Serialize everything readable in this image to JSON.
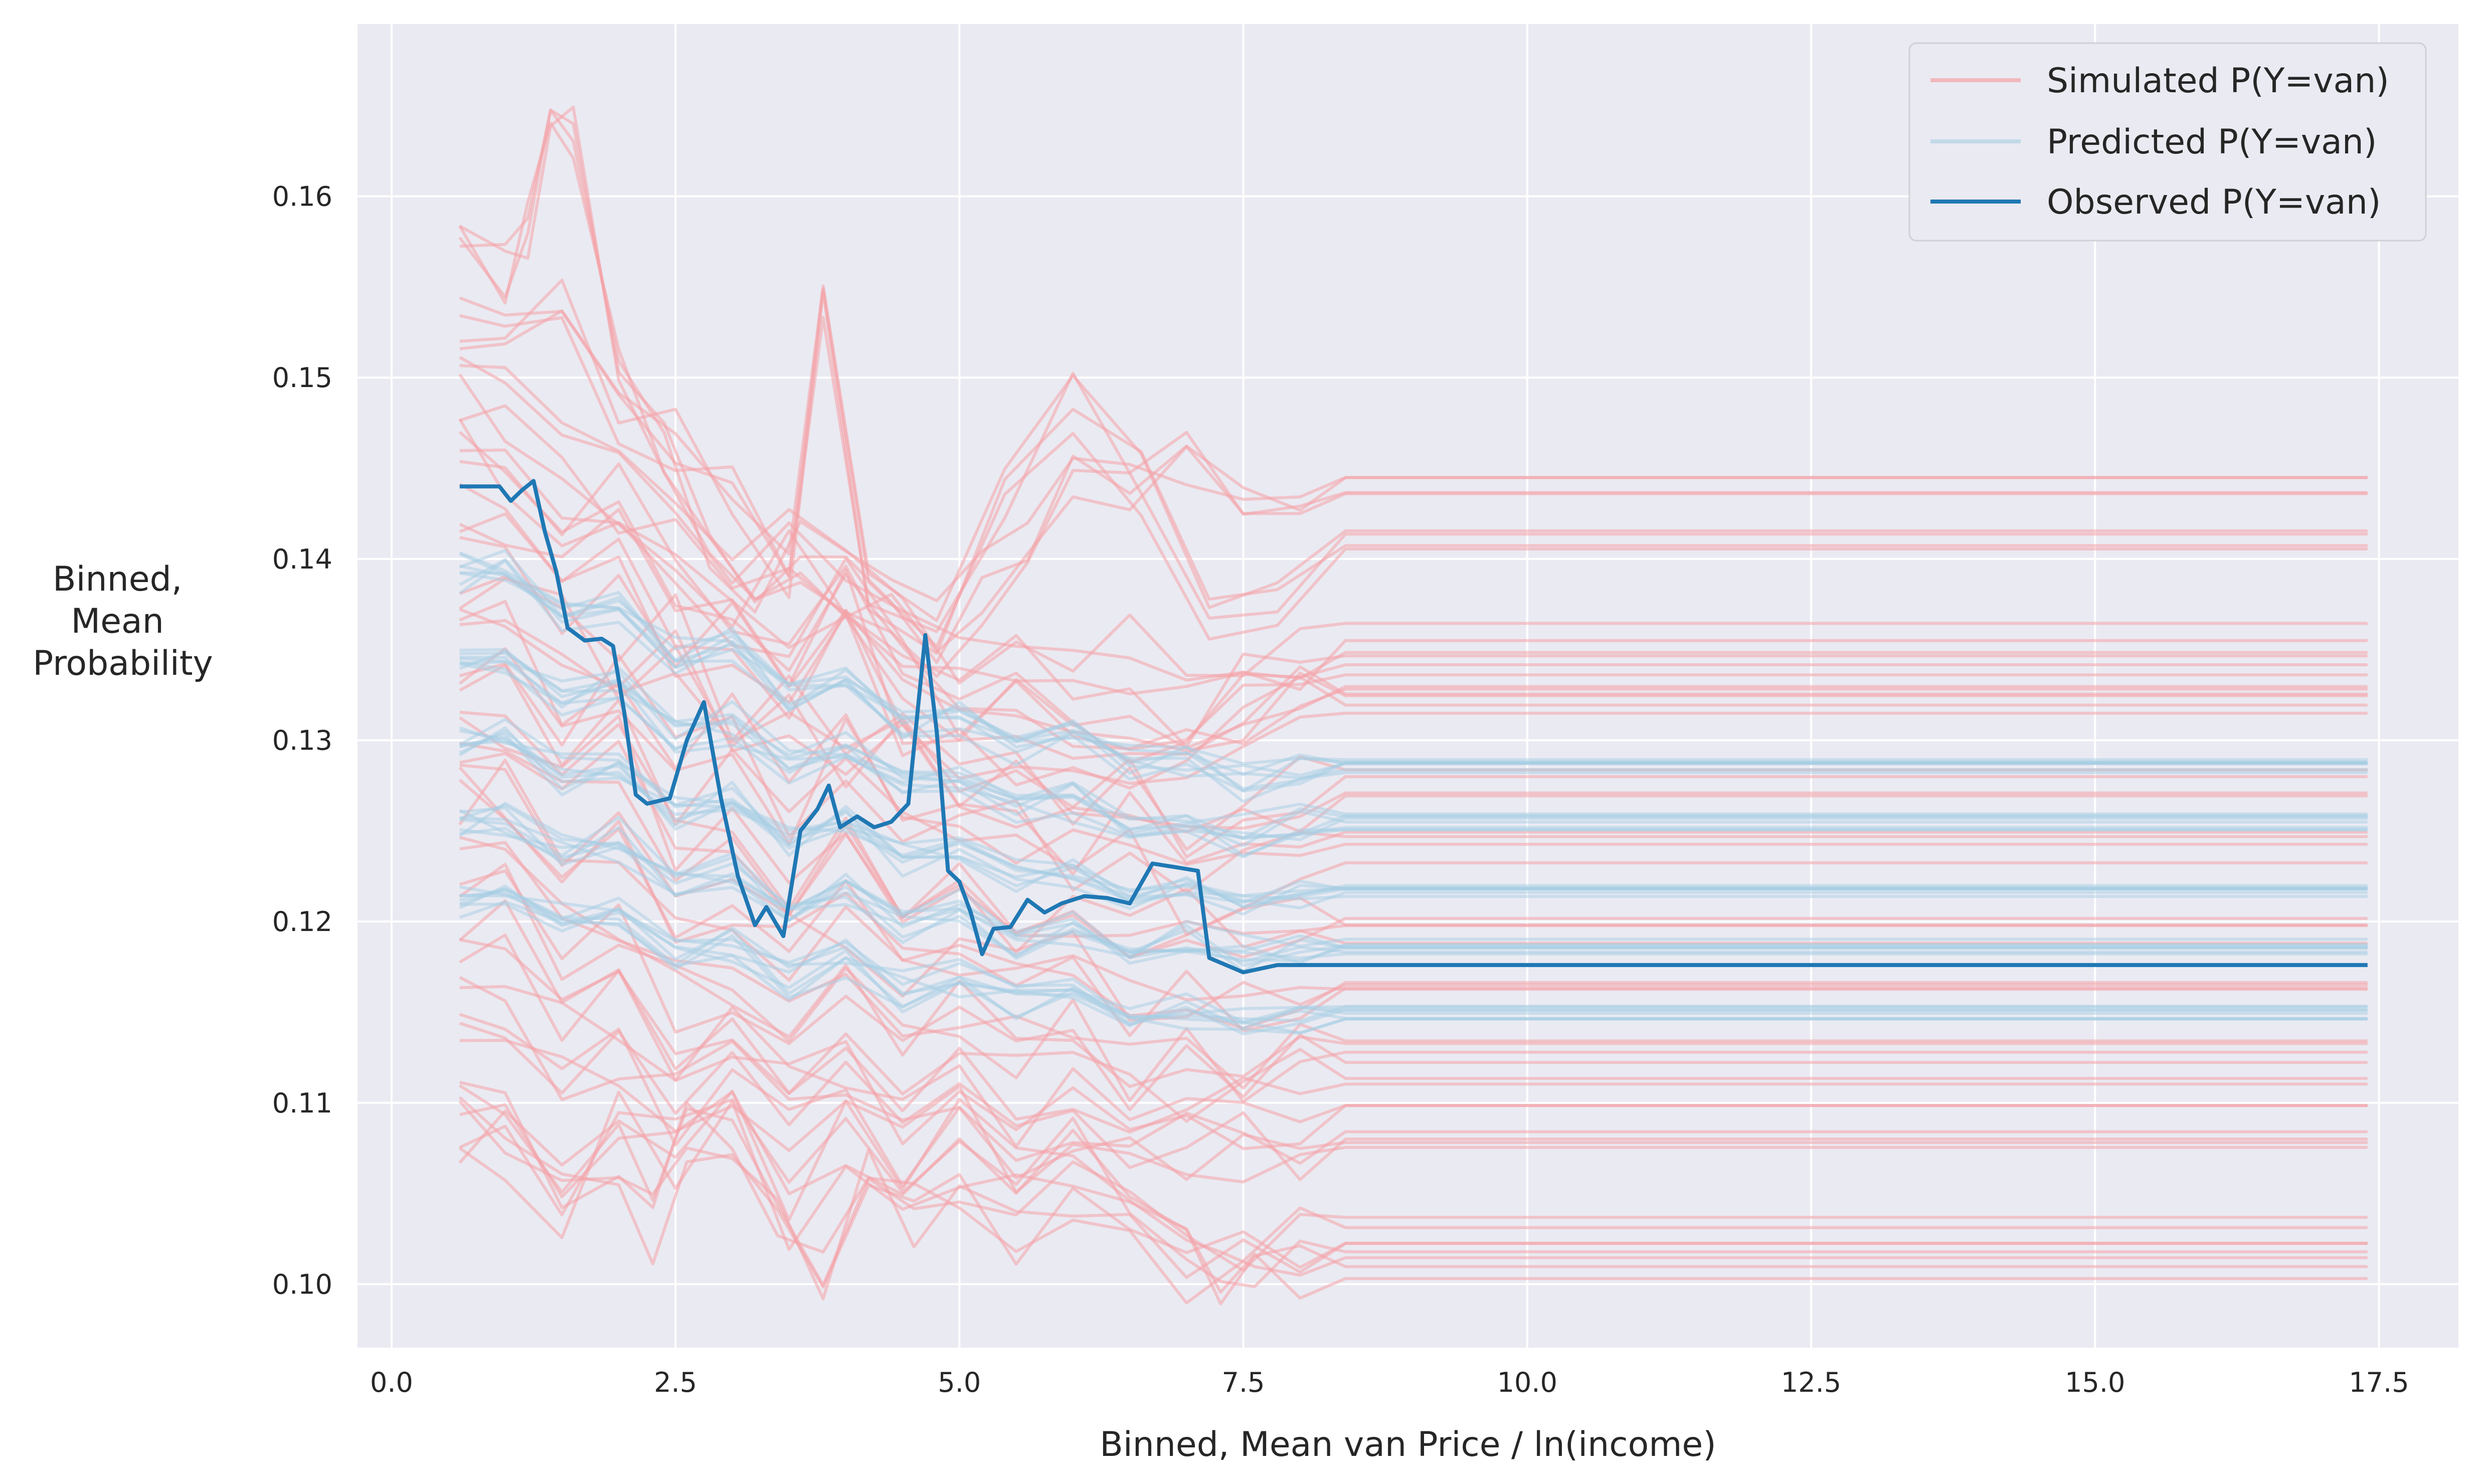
{
  "chart_data": {
    "type": "line",
    "title": "",
    "xlabel": "Binned, Mean van Price / ln(income)",
    "ylabel_lines": [
      "Binned,",
      "Mean",
      "Probability"
    ],
    "xlim": [
      -0.3,
      18.2
    ],
    "ylim": [
      0.0965,
      0.1695
    ],
    "xticks": [
      0.0,
      2.5,
      5.0,
      7.5,
      10.0,
      12.5,
      15.0,
      17.5
    ],
    "xtick_labels": [
      "0.0",
      "2.5",
      "5.0",
      "7.5",
      "10.0",
      "12.5",
      "15.0",
      "17.5"
    ],
    "yticks": [
      0.1,
      0.11,
      0.12,
      0.13,
      0.14,
      0.15,
      0.16
    ],
    "ytick_labels": [
      "0.10",
      "0.11",
      "0.12",
      "0.13",
      "0.14",
      "0.15",
      "0.16"
    ],
    "grid": true,
    "legend_position": "top-right",
    "colors": {
      "background": "#eaeaf2",
      "grid": "#ffffff",
      "simulated": "#f4a3a8",
      "predicted": "#a6cee3",
      "observed": "#1f78b4"
    },
    "series": [
      {
        "name": "Simulated P(Y=van)",
        "style": "band-of-many-lines",
        "representative_traces": [
          {
            "x": [
              0.6,
              1.0,
              1.2,
              1.4,
              1.6,
              2.0,
              2.4,
              2.8,
              3.2,
              3.6,
              4.0,
              4.4,
              4.8,
              5.2,
              5.6,
              6.0,
              6.5,
              7.0,
              7.5,
              8.0,
              8.4,
              17.4
            ],
            "y": [
              0.1575,
              0.156,
              0.159,
              0.165,
              0.164,
              0.152,
              0.146,
              0.141,
              0.138,
              0.141,
              0.139,
              0.137,
              0.136,
              0.139,
              0.141,
              0.145,
              0.145,
              0.146,
              0.144,
              0.144,
              0.1445,
              0.1445
            ]
          },
          {
            "x": [
              0.6,
              1.0,
              1.5,
              2.0,
              2.5,
              3.0,
              3.5,
              3.8,
              4.2,
              4.8,
              5.4,
              6.0,
              6.6,
              7.2,
              7.8,
              8.4,
              17.4
            ],
            "y": [
              0.153,
              0.152,
              0.155,
              0.149,
              0.147,
              0.145,
              0.139,
              0.155,
              0.138,
              0.137,
              0.143,
              0.149,
              0.145,
              0.138,
              0.139,
              0.1413,
              0.1413
            ]
          },
          {
            "x": [
              0.6,
              1.0,
              1.5,
              2.0,
              2.5,
              3.0,
              3.5,
              4.0,
              4.5,
              5.0,
              5.5,
              6.0,
              6.5,
              7.0,
              7.5,
              8.0,
              8.4,
              17.4
            ],
            "y": [
              0.1495,
              0.149,
              0.147,
              0.144,
              0.141,
              0.139,
              0.142,
              0.138,
              0.136,
              0.134,
              0.135,
              0.133,
              0.134,
              0.132,
              0.134,
              0.1345,
              0.1355,
              0.1355
            ]
          },
          {
            "x": [
              0.6,
              1.0,
              1.5,
              2.0,
              2.5,
              3.0,
              3.5,
              4.0,
              4.5,
              5.0,
              5.5,
              6.0,
              6.5,
              7.0,
              7.5,
              8.0,
              8.4,
              17.4
            ],
            "y": [
              0.146,
              0.145,
              0.141,
              0.143,
              0.139,
              0.137,
              0.136,
              0.139,
              0.134,
              0.132,
              0.133,
              0.131,
              0.13,
              0.131,
              0.132,
              0.133,
              0.1335,
              0.1335
            ]
          },
          {
            "x": [
              0.6,
              1.0,
              1.5,
              2.0,
              2.5,
              3.0,
              3.5,
              4.0,
              4.5,
              5.0,
              5.5,
              6.0,
              6.5,
              7.0,
              7.5,
              8.0,
              8.4,
              17.4
            ],
            "y": [
              0.1425,
              0.142,
              0.138,
              0.14,
              0.135,
              0.136,
              0.132,
              0.137,
              0.131,
              0.13,
              0.129,
              0.13,
              0.128,
              0.129,
              0.131,
              0.1315,
              0.1318,
              0.1318
            ]
          },
          {
            "x": [
              0.6,
              1.0,
              1.5,
              2.0,
              2.5,
              3.0,
              3.5,
              4.0,
              4.5,
              5.0,
              5.5,
              6.0,
              6.5,
              7.0,
              7.5,
              8.0,
              8.4,
              17.4
            ],
            "y": [
              0.1385,
              0.138,
              0.137,
              0.134,
              0.136,
              0.131,
              0.133,
              0.129,
              0.132,
              0.127,
              0.128,
              0.126,
              0.127,
              0.125,
              0.126,
              0.1275,
              0.1278,
              0.1278
            ]
          },
          {
            "x": [
              0.6,
              1.0,
              1.5,
              2.0,
              2.5,
              3.0,
              3.5,
              4.0,
              4.5,
              5.0,
              5.5,
              6.0,
              6.5,
              7.0,
              7.5,
              8.0,
              8.4,
              17.4
            ],
            "y": [
              0.1345,
              0.135,
              0.131,
              0.133,
              0.128,
              0.13,
              0.126,
              0.129,
              0.125,
              0.126,
              0.124,
              0.123,
              0.125,
              0.122,
              0.123,
              0.1238,
              0.124,
              0.124
            ]
          },
          {
            "x": [
              0.6,
              1.0,
              1.5,
              2.0,
              2.5,
              3.0,
              3.5,
              4.0,
              4.5,
              5.0,
              5.5,
              6.0,
              6.5,
              7.0,
              7.5,
              8.0,
              8.4,
              17.4
            ],
            "y": [
              0.1305,
              0.131,
              0.127,
              0.129,
              0.124,
              0.126,
              0.122,
              0.125,
              0.121,
              0.122,
              0.12,
              0.121,
              0.119,
              0.12,
              0.119,
              0.1195,
              0.1198,
              0.1198
            ]
          },
          {
            "x": [
              0.6,
              1.0,
              1.5,
              2.0,
              2.5,
              3.0,
              3.5,
              4.0,
              4.5,
              5.0,
              5.5,
              6.0,
              6.5,
              7.0,
              7.5,
              8.0,
              8.4,
              17.4
            ],
            "y": [
              0.1265,
              0.127,
              0.123,
              0.124,
              0.12,
              0.121,
              0.118,
              0.12,
              0.117,
              0.118,
              0.116,
              0.117,
              0.115,
              0.116,
              0.115,
              0.1158,
              0.116,
              0.116
            ]
          },
          {
            "x": [
              0.6,
              1.0,
              1.5,
              2.0,
              2.5,
              3.0,
              3.5,
              4.0,
              4.5,
              5.0,
              5.5,
              6.0,
              6.5,
              7.0,
              7.5,
              8.0,
              8.4,
              17.4
            ],
            "y": [
              0.1225,
              0.123,
              0.119,
              0.12,
              0.116,
              0.117,
              0.114,
              0.117,
              0.113,
              0.115,
              0.113,
              0.114,
              0.112,
              0.113,
              0.112,
              0.1128,
              0.113,
              0.113
            ]
          },
          {
            "x": [
              0.6,
              1.0,
              1.5,
              2.0,
              2.5,
              3.0,
              3.5,
              4.0,
              4.5,
              5.0,
              5.5,
              6.0,
              6.5,
              7.0,
              7.5,
              8.0,
              8.4,
              17.4
            ],
            "y": [
              0.1185,
              0.119,
              0.115,
              0.116,
              0.112,
              0.114,
              0.111,
              0.113,
              0.11,
              0.112,
              0.11,
              0.111,
              0.109,
              0.11,
              0.109,
              0.1102,
              0.1105,
              0.1105
            ]
          },
          {
            "x": [
              0.6,
              1.0,
              1.5,
              2.0,
              2.5,
              3.0,
              3.5,
              4.0,
              4.5,
              5.0,
              5.5,
              6.0,
              6.5,
              7.0,
              7.5,
              8.0,
              8.4,
              17.4
            ],
            "y": [
              0.1145,
              0.115,
              0.111,
              0.112,
              0.109,
              0.111,
              0.108,
              0.11,
              0.107,
              0.109,
              0.107,
              0.108,
              0.107,
              0.107,
              0.107,
              0.1072,
              0.1075,
              0.1075
            ]
          },
          {
            "x": [
              0.6,
              1.0,
              1.5,
              2.0,
              2.3,
              2.6,
              3.0,
              3.4,
              3.8,
              4.2,
              4.6,
              5.0,
              5.5,
              6.0,
              6.5,
              7.0,
              7.5,
              8.0,
              8.4,
              17.4
            ],
            "y": [
              0.1095,
              0.11,
              0.106,
              0.108,
              0.104,
              0.109,
              0.107,
              0.104,
              0.1,
              0.107,
              0.104,
              0.106,
              0.103,
              0.105,
              0.103,
              0.101,
              0.102,
              0.1035,
              0.1032,
              0.1032
            ]
          },
          {
            "x": [
              0.6,
              1.0,
              1.5,
              2.0,
              2.5,
              3.0,
              3.5,
              4.0,
              4.5,
              5.0,
              5.5,
              6.0,
              6.5,
              7.0,
              7.3,
              7.6,
              8.0,
              8.4,
              17.4
            ],
            "y": [
              0.1078,
              0.108,
              0.105,
              0.11,
              0.107,
              0.109,
              0.104,
              0.108,
              0.106,
              0.108,
              0.106,
              0.107,
              0.104,
              0.1025,
              0.1,
              0.1005,
              0.1015,
              0.101,
              0.101
            ]
          }
        ]
      },
      {
        "name": "Predicted P(Y=van)",
        "style": "band-of-many-lines",
        "representative_traces": [
          {
            "x": [
              0.6,
              1.0,
              1.5,
              2.0,
              2.5,
              3.0,
              3.5,
              4.0,
              4.5,
              5.0,
              5.5,
              6.0,
              6.5,
              7.0,
              7.5,
              8.0,
              8.4,
              17.4
            ],
            "y": [
              0.1392,
              0.1395,
              0.137,
              0.1375,
              0.1345,
              0.1352,
              0.132,
              0.1335,
              0.1305,
              0.1312,
              0.1295,
              0.1302,
              0.1285,
              0.129,
              0.1278,
              0.1282,
              0.1285,
              0.1285
            ]
          },
          {
            "x": [
              0.6,
              1.0,
              1.5,
              2.0,
              2.5,
              3.0,
              3.5,
              4.0,
              4.5,
              5.0,
              5.5,
              6.0,
              6.5,
              7.0,
              7.5,
              8.0,
              8.4,
              17.4
            ],
            "y": [
              0.1345,
              0.1348,
              0.1325,
              0.1332,
              0.1305,
              0.131,
              0.1285,
              0.1298,
              0.1272,
              0.128,
              0.1262,
              0.1268,
              0.1252,
              0.1258,
              0.1248,
              0.1252,
              0.1255,
              0.1255
            ]
          },
          {
            "x": [
              0.6,
              1.0,
              1.5,
              2.0,
              2.5,
              3.0,
              3.5,
              4.0,
              4.5,
              5.0,
              5.5,
              6.0,
              6.5,
              7.0,
              7.5,
              8.0,
              8.4,
              17.4
            ],
            "y": [
              0.13,
              0.1302,
              0.1282,
              0.1288,
              0.1262,
              0.1268,
              0.1245,
              0.1258,
              0.1235,
              0.1242,
              0.1225,
              0.123,
              0.1218,
              0.1222,
              0.1212,
              0.1215,
              0.1218,
              0.1218
            ]
          },
          {
            "x": [
              0.6,
              1.0,
              1.5,
              2.0,
              2.5,
              3.0,
              3.5,
              4.0,
              4.5,
              5.0,
              5.5,
              6.0,
              6.5,
              7.0,
              7.5,
              8.0,
              8.4,
              17.4
            ],
            "y": [
              0.1255,
              0.1258,
              0.124,
              0.1245,
              0.1222,
              0.1228,
              0.1205,
              0.1218,
              0.1198,
              0.1205,
              0.1188,
              0.1195,
              0.1182,
              0.1188,
              0.118,
              0.1184,
              0.1186,
              0.1186
            ]
          },
          {
            "x": [
              0.6,
              1.0,
              1.5,
              2.0,
              2.5,
              3.0,
              3.5,
              4.0,
              4.5,
              5.0,
              5.5,
              6.0,
              6.5,
              7.0,
              7.5,
              8.0,
              8.4,
              17.4
            ],
            "y": [
              0.1215,
              0.1218,
              0.12,
              0.1205,
              0.1182,
              0.1188,
              0.1168,
              0.118,
              0.1162,
              0.1168,
              0.1155,
              0.116,
              0.1148,
              0.1152,
              0.1145,
              0.1148,
              0.115,
              0.115
            ]
          }
        ]
      },
      {
        "name": "Observed P(Y=van)",
        "style": "single-line",
        "x": [
          0.6,
          0.95,
          1.05,
          1.15,
          1.25,
          1.35,
          1.45,
          1.55,
          1.7,
          1.85,
          1.95,
          2.05,
          2.15,
          2.25,
          2.45,
          2.6,
          2.75,
          2.9,
          3.05,
          3.2,
          3.3,
          3.45,
          3.6,
          3.75,
          3.85,
          3.95,
          4.1,
          4.25,
          4.4,
          4.55,
          4.7,
          4.8,
          4.9,
          5.0,
          5.1,
          5.2,
          5.3,
          5.45,
          5.6,
          5.75,
          5.9,
          6.1,
          6.3,
          6.5,
          6.7,
          6.9,
          7.1,
          7.2,
          7.5,
          7.8,
          8.5,
          17.4
        ],
        "y": [
          0.144,
          0.144,
          0.1432,
          0.1438,
          0.1443,
          0.1415,
          0.1393,
          0.1362,
          0.1355,
          0.1356,
          0.1352,
          0.1315,
          0.127,
          0.1265,
          0.1268,
          0.13,
          0.1321,
          0.1268,
          0.1225,
          0.1198,
          0.1208,
          0.1192,
          0.125,
          0.1262,
          0.1275,
          0.1252,
          0.1258,
          0.1252,
          0.1255,
          0.1265,
          0.1358,
          0.1305,
          0.1228,
          0.1222,
          0.1205,
          0.1182,
          0.1196,
          0.1197,
          0.1212,
          0.1205,
          0.121,
          0.1214,
          0.1213,
          0.121,
          0.1232,
          0.123,
          0.1228,
          0.118,
          0.1172,
          0.1176,
          0.1176,
          0.1176
        ]
      }
    ]
  }
}
